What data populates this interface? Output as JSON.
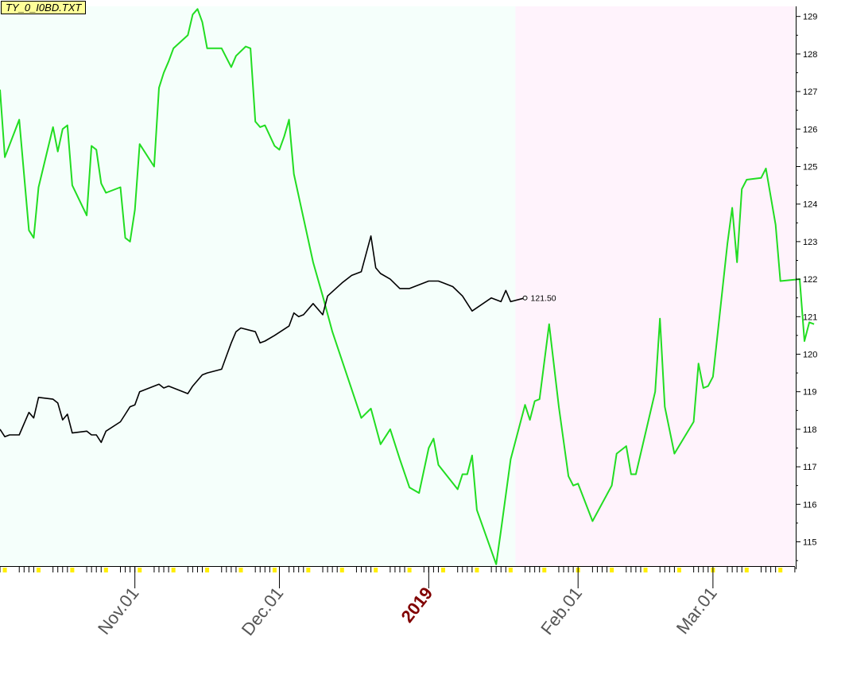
{
  "symbol_label": "TY_0_I0BD.TXT",
  "colors": {
    "bg_left": "#f5fffb",
    "bg_right": "#fff3fc",
    "green_series": "#22dd22",
    "black_series": "#000000",
    "minor_tick_fill": "#ffee00",
    "year_label": "#800000",
    "month_label": "#555555"
  },
  "chart_data": {
    "type": "line",
    "ylim": [
      114.4,
      129.3
    ],
    "y_ticks": [
      115,
      116,
      117,
      118,
      119,
      120,
      121,
      122,
      123,
      124,
      125,
      126,
      127,
      128,
      129
    ],
    "x_range": [
      "2018-10-04",
      "2019-03-22"
    ],
    "shaded_split_date": "2019-01-19",
    "grid": false,
    "x_tick_labels": [
      {
        "date": "2018-11-01",
        "label": "Nov.01",
        "style": "month"
      },
      {
        "date": "2018-12-01",
        "label": "Dec.01",
        "style": "month"
      },
      {
        "date": "2019-01-01",
        "label": "2019",
        "style": "year"
      },
      {
        "date": "2019-02-01",
        "label": "Feb.01",
        "style": "month"
      },
      {
        "date": "2019-03-01",
        "label": "Mar.01",
        "style": "month"
      }
    ],
    "last_value_label": "121.50",
    "series": [
      {
        "color": "#22dd22",
        "points": [
          [
            "2018-10-04",
            127.05
          ],
          [
            "2018-10-05",
            125.25
          ],
          [
            "2018-10-08",
            126.25
          ],
          [
            "2018-10-10",
            123.3
          ],
          [
            "2018-10-11",
            123.1
          ],
          [
            "2018-10-12",
            124.45
          ],
          [
            "2018-10-15",
            126.05
          ],
          [
            "2018-10-16",
            125.4
          ],
          [
            "2018-10-17",
            126.0
          ],
          [
            "2018-10-18",
            126.1
          ],
          [
            "2018-10-19",
            124.5
          ],
          [
            "2018-10-22",
            123.7
          ],
          [
            "2018-10-23",
            125.55
          ],
          [
            "2018-10-24",
            125.45
          ],
          [
            "2018-10-25",
            124.55
          ],
          [
            "2018-10-26",
            124.3
          ],
          [
            "2018-10-29",
            124.45
          ],
          [
            "2018-10-30",
            123.1
          ],
          [
            "2018-10-31",
            123.0
          ],
          [
            "2018-11-01",
            123.85
          ],
          [
            "2018-11-02",
            125.6
          ],
          [
            "2018-11-05",
            125.0
          ],
          [
            "2018-11-06",
            127.1
          ],
          [
            "2018-11-07",
            127.5
          ],
          [
            "2018-11-08",
            127.8
          ],
          [
            "2018-11-09",
            128.15
          ],
          [
            "2018-11-12",
            128.5
          ],
          [
            "2018-11-13",
            129.05
          ],
          [
            "2018-11-14",
            129.2
          ],
          [
            "2018-11-15",
            128.85
          ],
          [
            "2018-11-16",
            128.15
          ],
          [
            "2018-11-19",
            128.15
          ],
          [
            "2018-11-20",
            127.9
          ],
          [
            "2018-11-21",
            127.65
          ],
          [
            "2018-11-22",
            127.95
          ],
          [
            "2018-11-24",
            128.2
          ],
          [
            "2018-11-25",
            128.15
          ],
          [
            "2018-11-26",
            126.2
          ],
          [
            "2018-11-27",
            126.05
          ],
          [
            "2018-11-28",
            126.1
          ],
          [
            "2018-11-30",
            125.55
          ],
          [
            "2018-12-01",
            125.45
          ],
          [
            "2018-12-02",
            125.8
          ],
          [
            "2018-12-03",
            126.25
          ],
          [
            "2018-12-04",
            124.8
          ],
          [
            "2018-12-08",
            122.45
          ],
          [
            "2018-12-10",
            121.55
          ],
          [
            "2018-12-12",
            120.6
          ],
          [
            "2018-12-18",
            118.3
          ],
          [
            "2018-12-20",
            118.55
          ],
          [
            "2018-12-22",
            117.6
          ],
          [
            "2018-12-24",
            118.0
          ],
          [
            "2018-12-26",
            117.2
          ],
          [
            "2018-12-28",
            116.45
          ],
          [
            "2018-12-30",
            116.3
          ],
          [
            "2019-01-01",
            117.5
          ],
          [
            "2019-01-02",
            117.75
          ],
          [
            "2019-01-03",
            117.05
          ],
          [
            "2019-01-07",
            116.4
          ],
          [
            "2019-01-08",
            116.8
          ],
          [
            "2019-01-09",
            116.8
          ],
          [
            "2019-01-10",
            117.3
          ],
          [
            "2019-01-11",
            115.85
          ],
          [
            "2019-01-15",
            114.4
          ],
          [
            "2019-01-16",
            115.3
          ],
          [
            "2019-01-18",
            117.2
          ],
          [
            "2019-01-21",
            118.65
          ],
          [
            "2019-01-22",
            118.25
          ],
          [
            "2019-01-23",
            118.75
          ],
          [
            "2019-01-24",
            118.8
          ],
          [
            "2019-01-26",
            120.8
          ],
          [
            "2019-01-28",
            118.6
          ],
          [
            "2019-01-30",
            116.75
          ],
          [
            "2019-01-31",
            116.5
          ],
          [
            "2019-02-01",
            116.55
          ],
          [
            "2019-02-04",
            115.55
          ],
          [
            "2019-02-08",
            116.5
          ],
          [
            "2019-02-09",
            117.35
          ],
          [
            "2019-02-11",
            117.55
          ],
          [
            "2019-02-12",
            116.8
          ],
          [
            "2019-02-13",
            116.8
          ],
          [
            "2019-02-17",
            119.0
          ],
          [
            "2019-02-18",
            120.95
          ],
          [
            "2019-02-19",
            118.6
          ],
          [
            "2019-02-21",
            117.35
          ],
          [
            "2019-02-25",
            118.2
          ],
          [
            "2019-02-26",
            119.75
          ],
          [
            "2019-02-27",
            119.1
          ],
          [
            "2019-02-28",
            119.15
          ],
          [
            "2019-03-01",
            119.4
          ],
          [
            "2019-03-04",
            122.95
          ],
          [
            "2019-03-05",
            123.9
          ],
          [
            "2019-03-06",
            122.45
          ],
          [
            "2019-03-07",
            124.4
          ],
          [
            "2019-03-08",
            124.65
          ],
          [
            "2019-03-11",
            124.7
          ],
          [
            "2019-03-12",
            124.95
          ],
          [
            "2019-03-14",
            123.45
          ],
          [
            "2019-03-15",
            121.95
          ],
          [
            "2019-03-19",
            122.0
          ],
          [
            "2019-03-20",
            120.35
          ],
          [
            "2019-03-21",
            120.85
          ],
          [
            "2019-03-22",
            120.8
          ]
        ]
      },
      {
        "color": "#000000",
        "points": [
          [
            "2018-10-04",
            118.0
          ],
          [
            "2018-10-05",
            117.8
          ],
          [
            "2018-10-06",
            117.85
          ],
          [
            "2018-10-08",
            117.85
          ],
          [
            "2018-10-10",
            118.45
          ],
          [
            "2018-10-11",
            118.3
          ],
          [
            "2018-10-12",
            118.85
          ],
          [
            "2018-10-15",
            118.8
          ],
          [
            "2018-10-16",
            118.7
          ],
          [
            "2018-10-17",
            118.25
          ],
          [
            "2018-10-18",
            118.4
          ],
          [
            "2018-10-19",
            117.9
          ],
          [
            "2018-10-22",
            117.95
          ],
          [
            "2018-10-23",
            117.85
          ],
          [
            "2018-10-24",
            117.85
          ],
          [
            "2018-10-25",
            117.65
          ],
          [
            "2018-10-26",
            117.95
          ],
          [
            "2018-10-29",
            118.2
          ],
          [
            "2018-10-30",
            118.4
          ],
          [
            "2018-10-31",
            118.6
          ],
          [
            "2018-11-01",
            118.65
          ],
          [
            "2018-11-02",
            119.0
          ],
          [
            "2018-11-05",
            119.15
          ],
          [
            "2018-11-06",
            119.2
          ],
          [
            "2018-11-07",
            119.1
          ],
          [
            "2018-11-08",
            119.15
          ],
          [
            "2018-11-09",
            119.1
          ],
          [
            "2018-11-12",
            118.95
          ],
          [
            "2018-11-13",
            119.15
          ],
          [
            "2018-11-14",
            119.3
          ],
          [
            "2018-11-15",
            119.45
          ],
          [
            "2018-11-16",
            119.5
          ],
          [
            "2018-11-19",
            119.6
          ],
          [
            "2018-11-20",
            119.95
          ],
          [
            "2018-11-21",
            120.3
          ],
          [
            "2018-11-22",
            120.6
          ],
          [
            "2018-11-23",
            120.7
          ],
          [
            "2018-11-26",
            120.6
          ],
          [
            "2018-11-27",
            120.3
          ],
          [
            "2018-11-28",
            120.35
          ],
          [
            "2018-11-30",
            120.5
          ],
          [
            "2018-12-03",
            120.75
          ],
          [
            "2018-12-04",
            121.1
          ],
          [
            "2018-12-05",
            121.0
          ],
          [
            "2018-12-06",
            121.05
          ],
          [
            "2018-12-08",
            121.35
          ],
          [
            "2018-12-10",
            121.05
          ],
          [
            "2018-12-11",
            121.55
          ],
          [
            "2018-12-14",
            121.9
          ],
          [
            "2018-12-16",
            122.1
          ],
          [
            "2018-12-18",
            122.2
          ],
          [
            "2018-12-20",
            123.15
          ],
          [
            "2018-12-21",
            122.3
          ],
          [
            "2018-12-22",
            122.15
          ],
          [
            "2018-12-24",
            122.0
          ],
          [
            "2018-12-26",
            121.75
          ],
          [
            "2018-12-28",
            121.75
          ],
          [
            "2019-01-01",
            121.95
          ],
          [
            "2019-01-03",
            121.95
          ],
          [
            "2019-01-04",
            121.9
          ],
          [
            "2019-01-06",
            121.8
          ],
          [
            "2019-01-08",
            121.55
          ],
          [
            "2019-01-10",
            121.15
          ],
          [
            "2019-01-14",
            121.5
          ],
          [
            "2019-01-16",
            121.4
          ],
          [
            "2019-01-17",
            121.7
          ],
          [
            "2019-01-18",
            121.4
          ],
          [
            "2019-01-21",
            121.5
          ]
        ]
      }
    ]
  }
}
